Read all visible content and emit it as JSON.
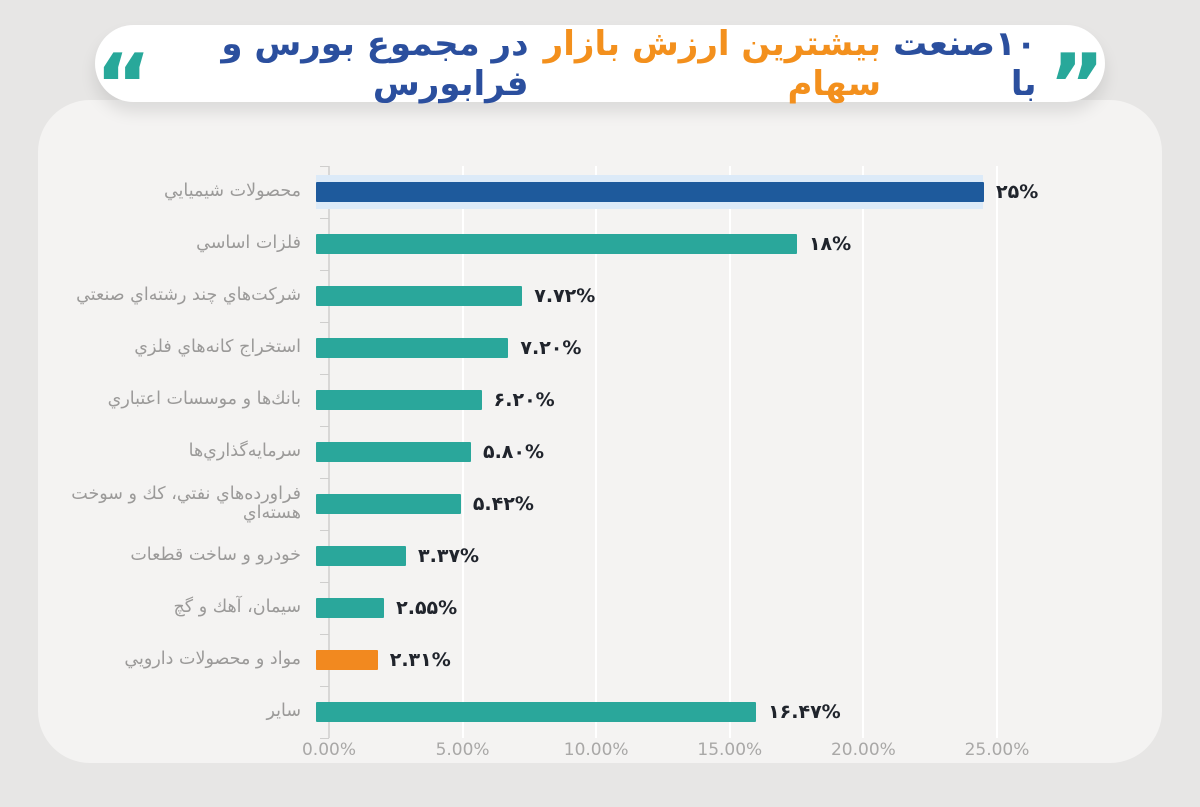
{
  "title": {
    "open_quote": "”",
    "segment_blue_start": "۱۰صنعت با",
    "segment_orange": "بیشترین ارزش بازار سهام",
    "segment_blue_end": "در مجموع بورس و فرابورس",
    "close_quote": "“"
  },
  "colors": {
    "title_blue": "#2b4f9e",
    "title_orange": "#f3901d",
    "quote_teal": "#28a89a",
    "bar_blue": "#1e5a9c",
    "bar_teal": "#2aa79b",
    "bar_orange": "#f2891f",
    "value_label": "#20242c",
    "category_label": "#9b9a99",
    "axis_label": "#a9a8a7",
    "row_highlight": "#dceaf8"
  },
  "chart_data": {
    "type": "bar",
    "orientation": "horizontal",
    "title": "۱۰صنعت با بیشترین ارزش بازار سهام در مجموع بورس و فرابورس",
    "categories": [
      "محصولات شيميايي",
      "فلزات اساسي",
      "شرکت‌هاي چند رشته‌اي صنعتي",
      "استخراج کانه‌هاي فلزي",
      "بانك‌ها و موسسات اعتباري",
      "سرمايه‌گذاري‌ها",
      "فراورده‌هاي نفتي، كك و سوخت هسته‌اي",
      "خودرو و ساخت قطعات",
      "سيمان، آهك و گچ",
      "مواد و محصولات دارويي",
      "ساير"
    ],
    "values": [
      25,
      18,
      7.72,
      7.2,
      6.2,
      5.8,
      5.42,
      3.37,
      2.55,
      2.31,
      16.47
    ],
    "value_labels": [
      "۲۵%",
      "۱۸%",
      "۷.۷۲%",
      "۷.۲۰%",
      "۶.۲۰%",
      "۵.۸۰%",
      "۵.۴۲%",
      "۳.۳۷%",
      "۲.۵۵%",
      "۲.۳۱%",
      "۱۶.۴۷%"
    ],
    "bar_color_keys": [
      "bar_blue",
      "bar_teal",
      "bar_teal",
      "bar_teal",
      "bar_teal",
      "bar_teal",
      "bar_teal",
      "bar_teal",
      "bar_teal",
      "bar_orange",
      "bar_teal"
    ],
    "highlighted_row_index": 0,
    "x_ticks": [
      "0.00%",
      "5.00%",
      "10.00%",
      "15.00%",
      "20.00%",
      "25.00%"
    ],
    "xlim": [
      0,
      25
    ],
    "grid": true,
    "legend": false
  }
}
